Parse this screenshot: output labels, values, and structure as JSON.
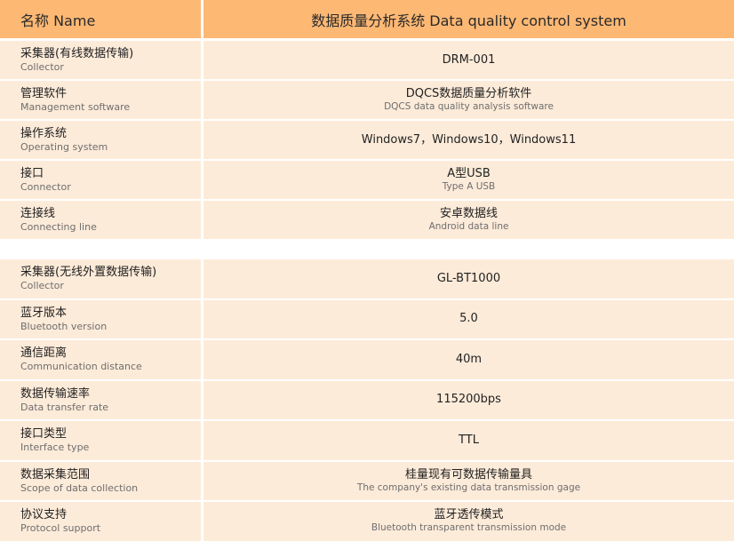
{
  "header": {
    "name": "名称 Name",
    "system": "数据质量分析系统 Data quality control system"
  },
  "group1": [
    {
      "zh": "采集器(有线数据传输)",
      "en": "Collector",
      "value": "DRM-001",
      "value_en": ""
    },
    {
      "zh": "管理软件",
      "en": "Management software",
      "value": "DQCS数据质量分析软件",
      "value_en": "DQCS data quality analysis software"
    },
    {
      "zh": "操作系统",
      "en": "Operating system",
      "value": "Windows7，Windows10，Windows11",
      "value_en": ""
    },
    {
      "zh": "接口",
      "en": "Connector",
      "value": "A型USB",
      "value_en": "Type A USB"
    },
    {
      "zh": "连接线",
      "en": "Connecting line",
      "value": "安卓数据线",
      "value_en": "Android data line"
    }
  ],
  "group2": [
    {
      "zh": "采集器(无线外置数据传输)",
      "en": "Collector",
      "value": "GL-BT1000",
      "value_en": ""
    },
    {
      "zh": "蓝牙版本",
      "en": "Bluetooth version",
      "value": "5.0",
      "value_en": ""
    },
    {
      "zh": "通信距离",
      "en": "Communication distance",
      "value": "40m",
      "value_en": ""
    },
    {
      "zh": "数据传输速率",
      "en": "Data transfer rate",
      "value": "115200bps",
      "value_en": ""
    },
    {
      "zh": "接口类型",
      "en": "Interface type",
      "value": "TTL",
      "value_en": ""
    },
    {
      "zh": "数据采集范围",
      "en": "Scope of data collection",
      "value": "桂量现有可数据传输量具",
      "value_en": "The company's existing data transmission gage"
    },
    {
      "zh": "协议支持",
      "en": "Protocol support",
      "value": "蓝牙透传模式",
      "value_en": "Bluetooth transparent transmission mode"
    }
  ]
}
